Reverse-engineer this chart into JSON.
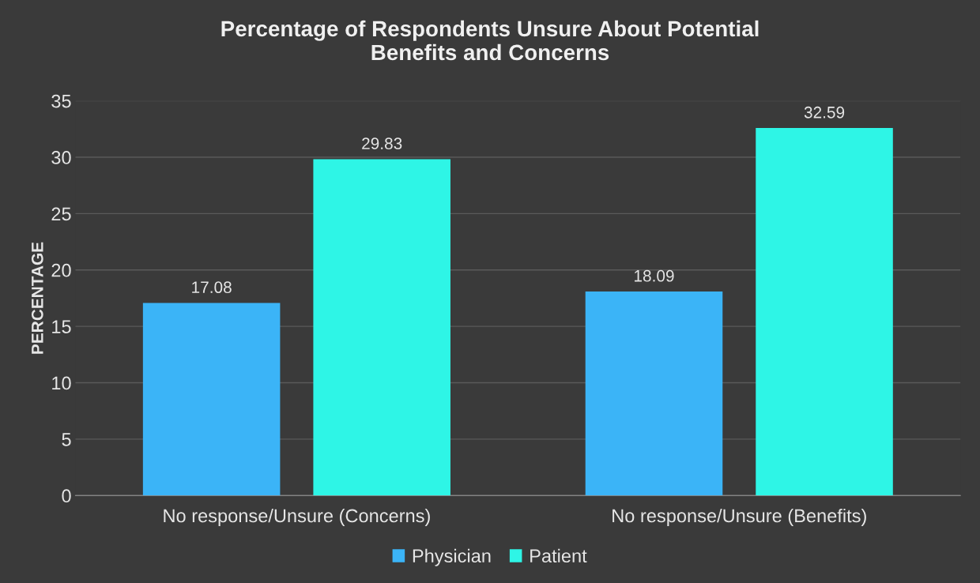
{
  "chart_data": {
    "type": "bar",
    "title": "Percentage of Respondents Unsure About Potential\nBenefits and Concerns",
    "ylabel": "PERCENTAGE",
    "categories": [
      "No response/Unsure (Concerns)",
      "No response/Unsure (Benefits)"
    ],
    "series": [
      {
        "name": "Physician",
        "color": "#3bb4f7",
        "values": [
          17.08,
          18.09
        ]
      },
      {
        "name": "Patient",
        "color": "#2ef5e6",
        "values": [
          29.83,
          32.59
        ]
      }
    ],
    "ylim": [
      0,
      35
    ],
    "yticks": [
      0,
      5,
      10,
      15,
      20,
      25,
      30,
      35
    ],
    "grid": "y",
    "legend": "bottom",
    "data_labels": true
  }
}
